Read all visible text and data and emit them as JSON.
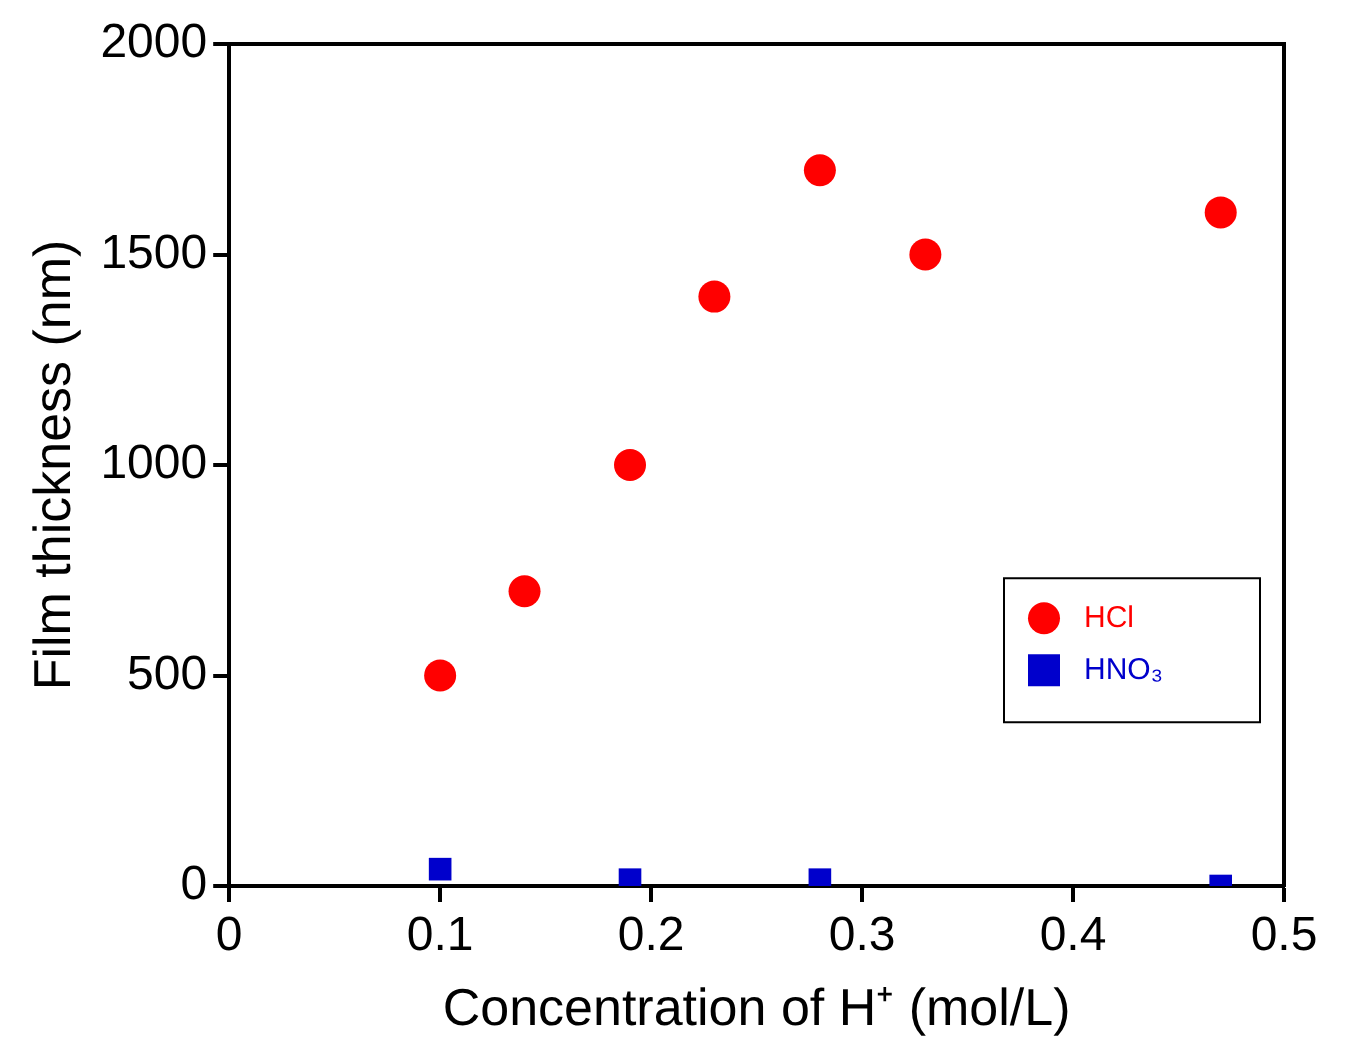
{
  "chart_data": {
    "type": "scatter",
    "xlabel": "Concentration of H⁺ (mol/L)",
    "ylabel": "Film thickness (nm)",
    "xlim": [
      0,
      0.5
    ],
    "xticks": [
      0,
      0.1,
      0.2,
      0.3,
      0.4,
      0.5
    ],
    "ylim": [
      0,
      2000
    ],
    "yticks": [
      0,
      500,
      1000,
      1500,
      2000
    ],
    "grid": false,
    "legend": "right",
    "series": [
      {
        "name": "HCl",
        "color": "#ff0000",
        "marker": "circle",
        "x": [
          0.1,
          0.14,
          0.19,
          0.23,
          0.28,
          0.33,
          0.47
        ],
        "values": [
          500,
          700,
          1000,
          1400,
          1700,
          1500,
          1600
        ]
      },
      {
        "name": "HNO₃",
        "color": "#0000cc",
        "marker": "square",
        "x": [
          0.1,
          0.19,
          0.28,
          0.47
        ],
        "values": [
          40,
          15,
          15,
          0
        ]
      }
    ]
  }
}
